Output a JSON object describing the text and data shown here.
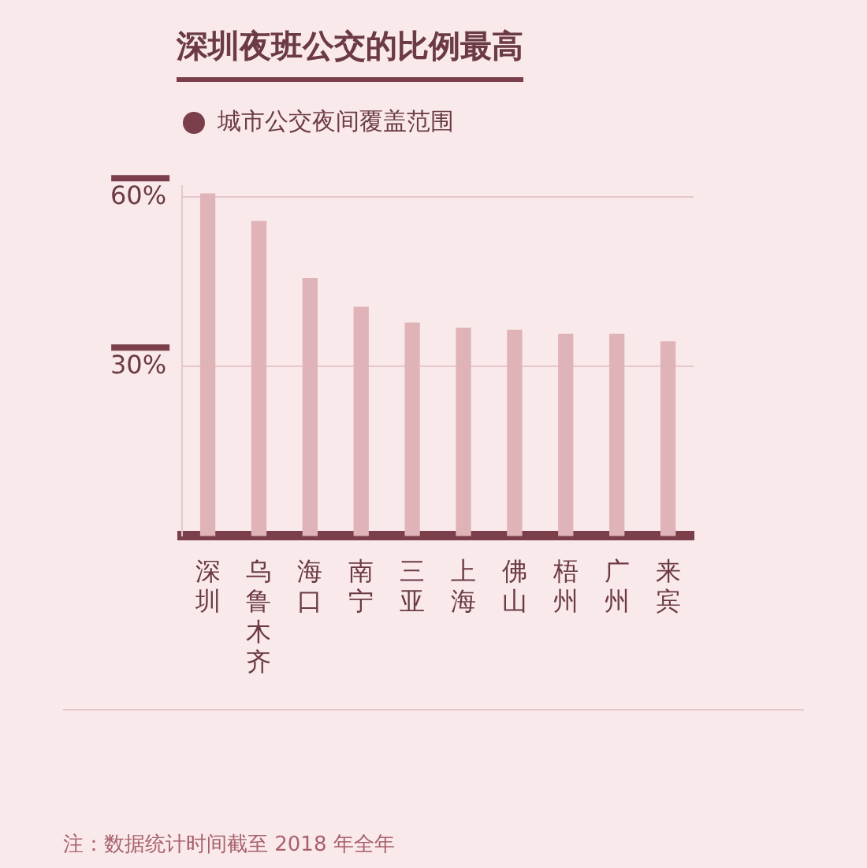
{
  "chart_data": {
    "type": "bar",
    "title": "深圳夜班公交的比例最高",
    "categories": [
      "深圳",
      "乌鲁木齐",
      "海口",
      "南宁",
      "三亚",
      "上海",
      "佛山",
      "梧州",
      "广州",
      "来宾"
    ],
    "series": [
      {
        "name": "城市公交夜间覆盖范围",
        "color": "#e0b3b8",
        "values": [
          60.6,
          55.7,
          45.6,
          40.5,
          37.7,
          36.8,
          36.4,
          35.7,
          35.7,
          34.4
        ]
      }
    ],
    "ylim": [
      0,
      62
    ],
    "yticks": [
      {
        "value": 30,
        "label": "30%"
      },
      {
        "value": 60,
        "label": "60%"
      }
    ],
    "grid": "y",
    "legend": "top left",
    "annotations": [
      "注：数据统计时间截至 2018 年全年"
    ]
  }
}
